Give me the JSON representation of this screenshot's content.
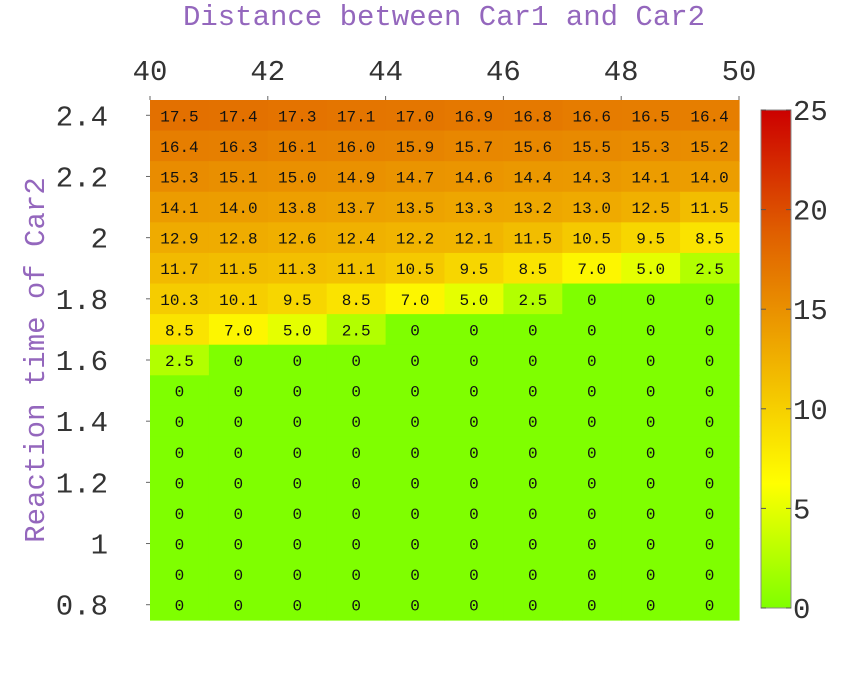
{
  "chart_data": {
    "type": "heatmap",
    "title": "Distance between Car1 and Car2",
    "ylabel": "Reaction time of Car2",
    "xlabel": "",
    "x_tick_labels": [
      "40",
      "42",
      "44",
      "46",
      "48",
      "50"
    ],
    "y_tick_labels": [
      "2.4",
      "2.2",
      "2",
      "1.8",
      "1.6",
      "1.4",
      "1.2",
      "1",
      "0.8"
    ],
    "x_axis_position": "top",
    "xlim": [
      40,
      50
    ],
    "ylim": [
      0.75,
      2.45
    ],
    "colorbar": {
      "tick_labels": [
        "0",
        "5",
        "10",
        "15",
        "20",
        "25"
      ],
      "range": [
        0,
        25
      ],
      "colors": [
        "#7fff00",
        "#ffff00",
        "#f0b000",
        "#e06000",
        "#cc0000"
      ]
    },
    "title_color": "#9467bd",
    "cell_labels": [
      [
        "17.5",
        "17.4",
        "17.3",
        "17.1",
        "17.0",
        "16.9",
        "16.8",
        "16.6",
        "16.5",
        "16.4"
      ],
      [
        "16.4",
        "16.3",
        "16.1",
        "16.0",
        "15.9",
        "15.7",
        "15.6",
        "15.5",
        "15.3",
        "15.2"
      ],
      [
        "15.3",
        "15.1",
        "15.0",
        "14.9",
        "14.7",
        "14.6",
        "14.4",
        "14.3",
        "14.1",
        "14.0"
      ],
      [
        "14.1",
        "14.0",
        "13.8",
        "13.7",
        "13.5",
        "13.3",
        "13.2",
        "13.0",
        "12.5",
        "11.5"
      ],
      [
        "12.9",
        "12.8",
        "12.6",
        "12.4",
        "12.2",
        "12.1",
        "11.5",
        "10.5",
        "9.5",
        "8.5"
      ],
      [
        "11.7",
        "11.5",
        "11.3",
        "11.1",
        "10.5",
        "9.5",
        "8.5",
        "7.0",
        "5.0",
        "2.5"
      ],
      [
        "10.3",
        "10.1",
        "9.5",
        "8.5",
        "7.0",
        "5.0",
        "2.5",
        "0",
        "0",
        "0"
      ],
      [
        "8.5",
        "7.0",
        "5.0",
        "2.5",
        "0",
        "0",
        "0",
        "0",
        "0",
        "0"
      ],
      [
        "2.5",
        "0",
        "0",
        "0",
        "0",
        "0",
        "0",
        "0",
        "0",
        "0"
      ],
      [
        "0",
        "0",
        "0",
        "0",
        "0",
        "0",
        "0",
        "0",
        "0",
        "0"
      ],
      [
        "0",
        "0",
        "0",
        "0",
        "0",
        "0",
        "0",
        "0",
        "0",
        "0"
      ],
      [
        "0",
        "0",
        "0",
        "0",
        "0",
        "0",
        "0",
        "0",
        "0",
        "0"
      ],
      [
        "0",
        "0",
        "0",
        "0",
        "0",
        "0",
        "0",
        "0",
        "0",
        "0"
      ],
      [
        "0",
        "0",
        "0",
        "0",
        "0",
        "0",
        "0",
        "0",
        "0",
        "0"
      ],
      [
        "0",
        "0",
        "0",
        "0",
        "0",
        "0",
        "0",
        "0",
        "0",
        "0"
      ],
      [
        "0",
        "0",
        "0",
        "0",
        "0",
        "0",
        "0",
        "0",
        "0",
        "0"
      ],
      [
        "0",
        "0",
        "0",
        "0",
        "0",
        "0",
        "0",
        "0",
        "0",
        "0"
      ]
    ]
  }
}
